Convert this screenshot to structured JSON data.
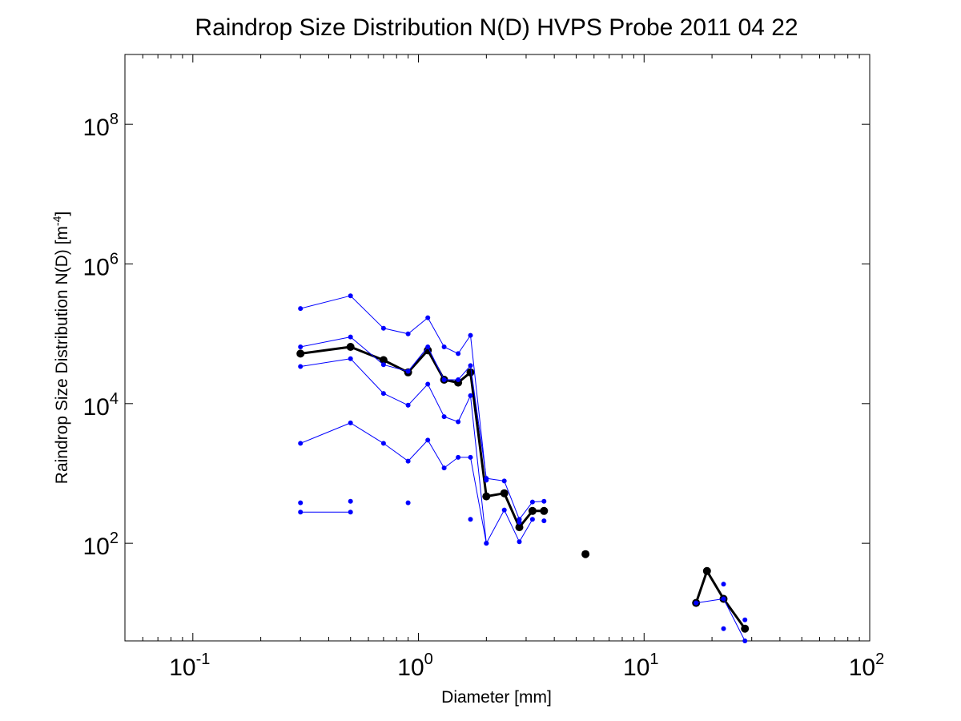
{
  "chart_data": {
    "type": "line",
    "title": "Raindrop Size Distribution N(D) HVPS Probe 2011 04 22",
    "xlabel": "Diameter [mm]",
    "ylabel": "Raindrop Size Distribution N(D) [m-4]",
    "ylabel_main": "Raindrop Size Distribution N(D) [m",
    "ylabel_sup": "-4",
    "ylabel_end": "]",
    "xscale": "log",
    "yscale": "log",
    "xlim": [
      0.05,
      100
    ],
    "ylim": [
      4,
      1000000000
    ],
    "grid": false,
    "x_tick_labels": [
      {
        "value": 0.1,
        "base": "10",
        "exp": "-1"
      },
      {
        "value": 1,
        "base": "10",
        "exp": "0"
      },
      {
        "value": 10,
        "base": "10",
        "exp": "1"
      },
      {
        "value": 100,
        "base": "10",
        "exp": "2"
      }
    ],
    "y_tick_labels": [
      {
        "value": 100,
        "base": "10",
        "exp": "2"
      },
      {
        "value": 10000,
        "base": "10",
        "exp": "4"
      },
      {
        "value": 1000000,
        "base": "10",
        "exp": "6"
      },
      {
        "value": 100000000,
        "base": "10",
        "exp": "8"
      }
    ],
    "colors": {
      "thin_series": "#0000ff",
      "mean_series": "#000000"
    },
    "series": [
      {
        "style": "mean",
        "x": [
          0.3,
          0.5,
          0.7,
          0.9,
          1.1,
          1.3,
          1.5,
          1.7,
          2.0,
          2.4,
          2.8,
          3.2,
          3.6,
          null,
          5.5,
          null,
          17,
          19,
          22.5,
          28
        ],
        "values": [
          52000,
          65000,
          42000,
          28000,
          58000,
          22000,
          20000,
          28000,
          470,
          520,
          170,
          290,
          290,
          null,
          70,
          null,
          14,
          40,
          16,
          6
        ]
      },
      {
        "style": "thin",
        "x": [
          0.3,
          0.5,
          0.7,
          0.9,
          1.1,
          1.3,
          1.5,
          1.7,
          2.0
        ],
        "values": [
          230000,
          350000,
          120000,
          100000,
          170000,
          65000,
          52000,
          95000,
          800
        ]
      },
      {
        "style": "thin",
        "x": [
          0.3,
          0.5,
          0.7,
          0.9,
          1.1,
          1.3,
          1.5,
          1.7,
          2.0,
          2.4,
          2.8,
          3.2,
          3.6
        ],
        "values": [
          65000,
          90000,
          36000,
          29000,
          65000,
          22000,
          22000,
          35000,
          850,
          780,
          220,
          390,
          400
        ]
      },
      {
        "style": "thin",
        "x": [
          0.3,
          0.5,
          0.7,
          0.9,
          1.1,
          1.3,
          1.5,
          1.7,
          2.0,
          2.4,
          2.8,
          3.2
        ],
        "values": [
          34000,
          44000,
          14000,
          9500,
          19000,
          6500,
          5500,
          13000,
          100,
          300,
          105,
          220
        ]
      },
      {
        "style": "thin",
        "x": [
          0.3,
          0.5,
          0.7,
          0.9,
          1.1,
          1.3,
          1.5,
          1.7,
          2.0
        ],
        "values": [
          2700,
          5300,
          2700,
          1500,
          3000,
          1200,
          1700,
          1700,
          100
        ]
      },
      {
        "style": "thin",
        "x": [
          0.3,
          0.5
        ],
        "values": [
          280,
          280
        ]
      },
      {
        "style": "points",
        "x": [
          0.3,
          0.5,
          0.9,
          1.7,
          2.8,
          3.6
        ],
        "values": [
          380,
          400,
          380,
          220,
          200,
          210
        ]
      },
      {
        "style": "points",
        "x": [
          22.5,
          22.5,
          28
        ],
        "values": [
          26,
          6,
          8
        ]
      },
      {
        "style": "thin",
        "x": [
          17,
          22.5,
          28
        ],
        "values": [
          14,
          16,
          4
        ]
      }
    ]
  }
}
